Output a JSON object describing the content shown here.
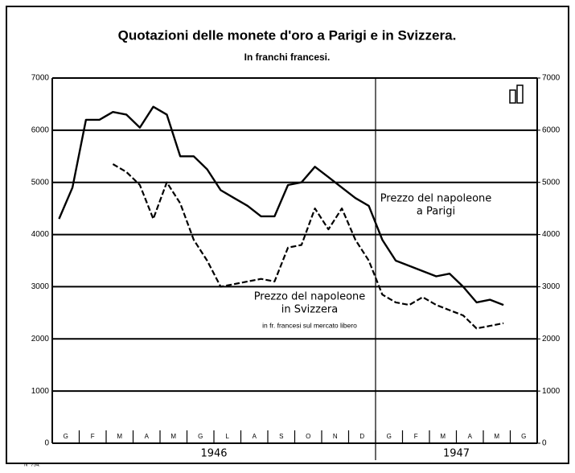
{
  "chart_data": {
    "type": "line",
    "title": "Quotazioni delle monete d'oro a Parigi e in Svizzera.",
    "subtitle": "In franchi francesi.",
    "categories": [
      "G",
      null,
      "F",
      null,
      "M",
      null,
      "A",
      null,
      "M",
      null,
      "G",
      null,
      "L",
      null,
      "A",
      null,
      "S",
      null,
      "O",
      null,
      "N",
      null,
      "D",
      null,
      "G",
      null,
      "F",
      null,
      "M",
      null,
      "A",
      null,
      "M",
      null,
      "G",
      null
    ],
    "years": [
      "1946",
      "1947"
    ],
    "series": [
      {
        "name": [
          "Prezzo del napoleone",
          "a Parigi"
        ],
        "color": "#000000",
        "dash": false,
        "values": [
          4300,
          4900,
          6200,
          6200,
          6350,
          6300,
          6050,
          6450,
          6300,
          5500,
          5500,
          5250,
          4850,
          4700,
          4550,
          4350,
          4350,
          4950,
          5000,
          5300,
          5100,
          4900,
          4700,
          4550,
          3900,
          3500,
          3400,
          3300,
          3200,
          3250,
          3000,
          2700,
          2750,
          2650,
          null,
          null
        ]
      },
      {
        "name": [
          "Prezzo del napoleone",
          "in Svizzera"
        ],
        "note": "in fr. francesi sul mercato libero",
        "color": "#000000",
        "dash": true,
        "values": [
          null,
          null,
          null,
          null,
          5350,
          5200,
          4950,
          4300,
          5000,
          4600,
          3900,
          3500,
          3000,
          3050,
          3100,
          3150,
          3100,
          3750,
          3800,
          4500,
          4100,
          4500,
          3900,
          3500,
          2850,
          2700,
          2650,
          2800,
          2650,
          2550,
          2450,
          2200,
          2250,
          2300,
          null,
          null
        ]
      }
    ],
    "ylim": [
      0,
      7000
    ],
    "yticks": [
      0,
      1000,
      2000,
      3000,
      4000,
      5000,
      6000,
      7000
    ],
    "y2lim": [
      0,
      7000
    ],
    "y2ticks": [
      0,
      1000,
      2000,
      3000,
      4000,
      5000,
      6000,
      7000
    ],
    "grid": true,
    "footnote": "N° 754."
  }
}
